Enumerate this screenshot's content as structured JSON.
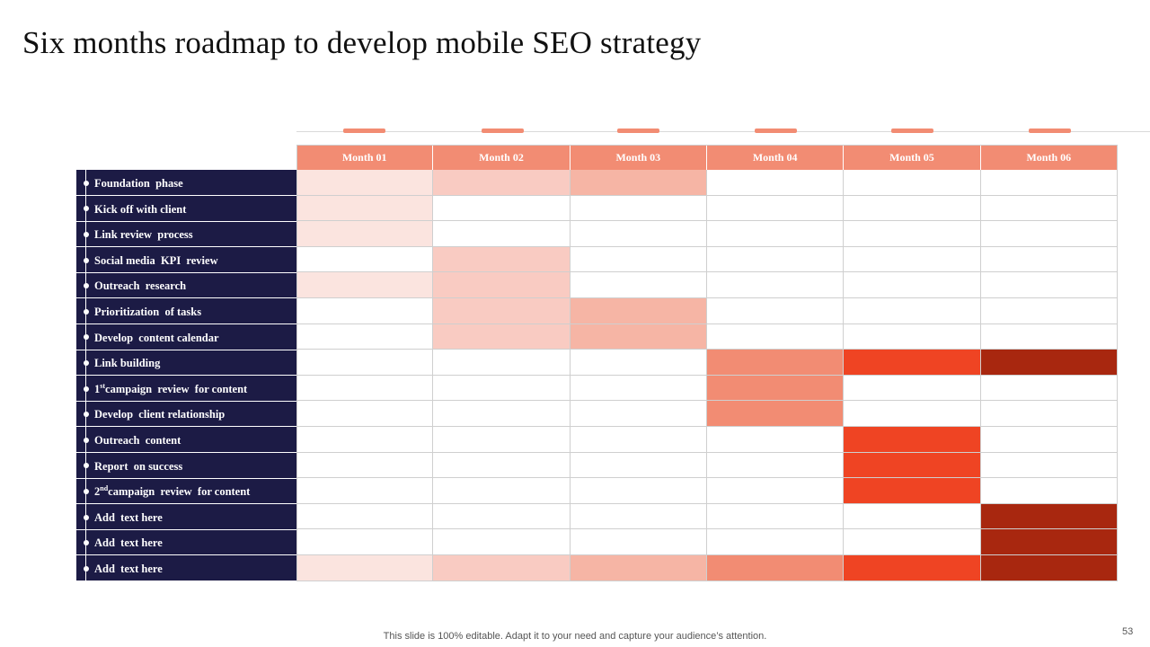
{
  "title": "Six months roadmap to develop mobile SEO strategy",
  "colors": {
    "header": "#f28c73",
    "marker": "#f28c73",
    "panel": "#1c1b45",
    "shades": [
      "#ffffff",
      "#fbe4df",
      "#f9cbc2",
      "#f6b5a5",
      "#f28c73",
      "#ef4423",
      "#a8270f"
    ]
  },
  "months": [
    "Month  01",
    "Month  02",
    "Month  03",
    "Month  04",
    "Month  05",
    "Month  06"
  ],
  "tasks": [
    {
      "label": "Foundation  phase",
      "shades": [
        1,
        2,
        3,
        0,
        0,
        0
      ]
    },
    {
      "label": "Kick off with client",
      "shades": [
        1,
        0,
        0,
        0,
        0,
        0
      ]
    },
    {
      "label": "Link review  process",
      "shades": [
        1,
        0,
        0,
        0,
        0,
        0
      ]
    },
    {
      "label": "Social media  KPI  review",
      "shades": [
        0,
        2,
        0,
        0,
        0,
        0
      ]
    },
    {
      "label": "Outreach  research",
      "shades": [
        1,
        2,
        0,
        0,
        0,
        0
      ]
    },
    {
      "label": "Prioritization  of tasks",
      "shades": [
        0,
        2,
        3,
        0,
        0,
        0
      ]
    },
    {
      "label": "Develop  content calendar",
      "shades": [
        0,
        2,
        3,
        0,
        0,
        0
      ]
    },
    {
      "label": "Link building",
      "shades": [
        0,
        0,
        0,
        4,
        5,
        6
      ]
    },
    {
      "label": "campaign  review  for content",
      "sup_prefix": "1",
      "sup": "st",
      "shades": [
        0,
        0,
        0,
        4,
        0,
        0
      ]
    },
    {
      "label": "Develop  client relationship",
      "shades": [
        0,
        0,
        0,
        4,
        0,
        0
      ]
    },
    {
      "label": "Outreach  content",
      "shades": [
        0,
        0,
        0,
        0,
        5,
        0
      ]
    },
    {
      "label": "Report  on success",
      "shades": [
        0,
        0,
        0,
        0,
        5,
        0
      ]
    },
    {
      "label": "campaign  review  for content",
      "sup_prefix": "2",
      "sup": "nd",
      "shades": [
        0,
        0,
        0,
        0,
        5,
        0
      ]
    },
    {
      "label": "Add  text here",
      "shades": [
        0,
        0,
        0,
        0,
        0,
        6
      ]
    },
    {
      "label": "Add  text here",
      "shades": [
        0,
        0,
        0,
        0,
        0,
        6
      ]
    },
    {
      "label": "Add  text here",
      "shades": [
        1,
        2,
        3,
        4,
        5,
        6
      ]
    }
  ],
  "footer": "This slide is 100% editable. Adapt it to your need and capture your audience’s attention.",
  "page_number": "53"
}
